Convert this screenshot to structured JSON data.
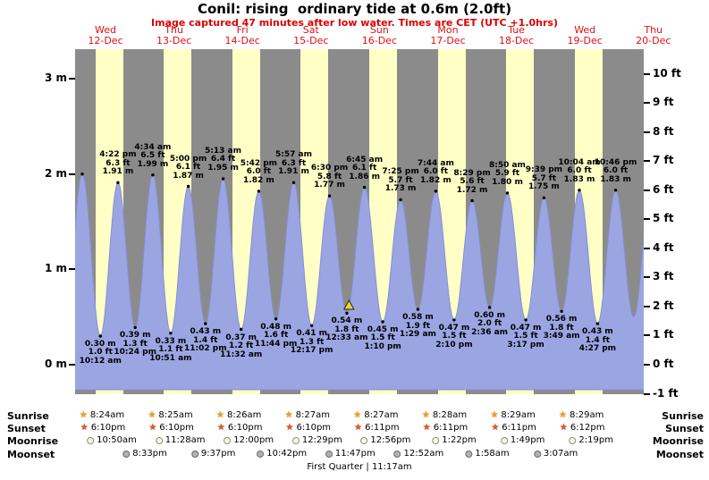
{
  "header": {
    "title": "Conil: rising  ordinary tide at 0.6m (2.0ft)",
    "subtitle": "Image captured 47 minutes after low water. Times are CET (UTC +1.0hrs)"
  },
  "colors": {
    "plot_bg": "#8b8b8b",
    "daylight_band": "#ffffc6",
    "tide_fill": "#9aa5e2",
    "tide_stroke": "#8690d4",
    "red_text": "#dd0000",
    "marker_fill": "#f2d42c"
  },
  "chart_data": {
    "type": "area",
    "title": "Conil: rising ordinary tide at 0.6m (2.0ft)",
    "timezone_note": "Times are CET (UTC +1.0hrs)",
    "ylim_m": [
      -0.3,
      3.31
    ],
    "days": [
      {
        "dow": "Wed",
        "date": "12-Dec"
      },
      {
        "dow": "Thu",
        "date": "13-Dec"
      },
      {
        "dow": "Fri",
        "date": "14-Dec"
      },
      {
        "dow": "Sat",
        "date": "15-Dec"
      },
      {
        "dow": "Sun",
        "date": "16-Dec"
      },
      {
        "dow": "Mon",
        "date": "17-Dec"
      },
      {
        "dow": "Tue",
        "date": "18-Dec"
      },
      {
        "dow": "Wed",
        "date": "19-Dec"
      },
      {
        "dow": "Thu",
        "date": "20-Dec"
      }
    ],
    "y_axis_left": {
      "unit": "m",
      "ticks": [
        {
          "label": "3 m",
          "value": 3
        },
        {
          "label": "2 m",
          "value": 2
        },
        {
          "label": "1 m",
          "value": 1
        },
        {
          "label": "0 m",
          "value": 0
        }
      ]
    },
    "y_axis_right": {
      "unit": "ft",
      "ticks": [
        {
          "label": "10 ft",
          "value": 10
        },
        {
          "label": "9 ft",
          "value": 9
        },
        {
          "label": "8 ft",
          "value": 8
        },
        {
          "label": "7 ft",
          "value": 7
        },
        {
          "label": "6 ft",
          "value": 6
        },
        {
          "label": "5 ft",
          "value": 5
        },
        {
          "label": "4 ft",
          "value": 4
        },
        {
          "label": "3 ft",
          "value": 3
        },
        {
          "label": "2 ft",
          "value": 2
        },
        {
          "label": "1 ft",
          "value": 1
        },
        {
          "label": "0 ft",
          "value": 0
        },
        {
          "label": "-1 ft",
          "value": -1
        }
      ]
    },
    "extremes": [
      {
        "kind": "low",
        "t": -2.4,
        "height_m": 0.33,
        "labeled": false,
        "dot": false
      },
      {
        "kind": "high",
        "t": 3.85,
        "height_m": 2.0,
        "labeled": false,
        "dot": true
      },
      {
        "kind": "low",
        "t": 10.2,
        "height_m": 0.3,
        "labeled": true,
        "dot": true,
        "lines": [
          "0.30 m",
          "1.0 ft",
          "10:12 am"
        ]
      },
      {
        "kind": "high",
        "t": 16.37,
        "height_m": 1.91,
        "labeled": true,
        "dot": true,
        "lines": [
          "4:22 pm",
          "6.3 ft",
          "1.91 m"
        ]
      },
      {
        "kind": "low",
        "t": 22.4,
        "height_m": 0.39,
        "labeled": true,
        "dot": true,
        "lines": [
          "0.39 m",
          "1.3 ft",
          "10:24 pm"
        ]
      },
      {
        "kind": "high",
        "t": 28.57,
        "height_m": 1.99,
        "labeled": true,
        "dot": true,
        "lines": [
          "4:34 am",
          "6.5 ft",
          "1.99 m"
        ]
      },
      {
        "kind": "low",
        "t": 34.85,
        "height_m": 0.33,
        "labeled": true,
        "dot": true,
        "lines": [
          "0.33 m",
          "1.1 ft",
          "10:51 am"
        ]
      },
      {
        "kind": "high",
        "t": 41.0,
        "height_m": 1.87,
        "labeled": true,
        "dot": true,
        "lines": [
          "5:00 pm",
          "6.1 ft",
          "1.87 m"
        ]
      },
      {
        "kind": "low",
        "t": 47.03,
        "height_m": 0.43,
        "labeled": true,
        "dot": true,
        "lines": [
          "0.43 m",
          "1.4 ft",
          "11:02 pm"
        ]
      },
      {
        "kind": "high",
        "t": 53.22,
        "height_m": 1.95,
        "labeled": true,
        "dot": true,
        "lines": [
          "5:13 am",
          "6.4 ft",
          "1.95 m"
        ]
      },
      {
        "kind": "low",
        "t": 59.53,
        "height_m": 0.37,
        "labeled": true,
        "dot": true,
        "lines": [
          "0.37 m",
          "1.2 ft",
          "11:32 am"
        ]
      },
      {
        "kind": "high",
        "t": 65.7,
        "height_m": 1.82,
        "labeled": true,
        "dot": true,
        "lines": [
          "5:42 pm",
          "6.0 ft",
          "1.82 m"
        ]
      },
      {
        "kind": "low",
        "t": 71.73,
        "height_m": 0.48,
        "labeled": true,
        "dot": true,
        "lines": [
          "0.48 m",
          "1.6 ft",
          "11:44 pm"
        ]
      },
      {
        "kind": "high",
        "t": 77.95,
        "height_m": 1.91,
        "labeled": true,
        "dot": true,
        "lines": [
          "5:57 am",
          "6.3 ft",
          "1.91 m"
        ]
      },
      {
        "kind": "low",
        "t": 84.28,
        "height_m": 0.41,
        "labeled": true,
        "dot": true,
        "lines": [
          "0.41 m",
          "1.3 ft",
          "12:17 pm"
        ]
      },
      {
        "kind": "high",
        "t": 90.5,
        "height_m": 1.77,
        "labeled": true,
        "dot": true,
        "lines": [
          "6:30 pm",
          "5.8 ft",
          "1.77 m"
        ]
      },
      {
        "kind": "low",
        "t": 96.55,
        "height_m": 0.54,
        "labeled": true,
        "dot": true,
        "lines": [
          "0.54 m",
          "1.8 ft",
          "12:33 am"
        ]
      },
      {
        "kind": "high",
        "t": 102.75,
        "height_m": 1.86,
        "labeled": true,
        "dot": true,
        "lines": [
          "6:45 am",
          "6.1 ft",
          "1.86 m"
        ]
      },
      {
        "kind": "low",
        "t": 109.17,
        "height_m": 0.45,
        "labeled": true,
        "dot": true,
        "lines": [
          "0.45 m",
          "1.5 ft",
          "1:10 pm"
        ]
      },
      {
        "kind": "high",
        "t": 115.42,
        "height_m": 1.73,
        "labeled": true,
        "dot": true,
        "lines": [
          "7:25 pm",
          "5.7 ft",
          "1.73 m"
        ]
      },
      {
        "kind": "low",
        "t": 121.48,
        "height_m": 0.58,
        "labeled": true,
        "dot": true,
        "lines": [
          "0.58 m",
          "1.9 ft",
          "1:29 am"
        ]
      },
      {
        "kind": "high",
        "t": 127.73,
        "height_m": 1.82,
        "labeled": true,
        "dot": true,
        "lines": [
          "7:44 am",
          "6.0 ft",
          "1.82 m"
        ]
      },
      {
        "kind": "low",
        "t": 134.17,
        "height_m": 0.47,
        "labeled": true,
        "dot": true,
        "lines": [
          "0.47 m",
          "1.5 ft",
          "2:10 pm"
        ]
      },
      {
        "kind": "high",
        "t": 140.48,
        "height_m": 1.72,
        "labeled": true,
        "dot": true,
        "lines": [
          "8:29 pm",
          "5.6 ft",
          "1.72 m"
        ]
      },
      {
        "kind": "low",
        "t": 146.6,
        "height_m": 0.6,
        "labeled": true,
        "dot": true,
        "lines": [
          "0.60 m",
          "2.0 ft",
          "2:36 am"
        ]
      },
      {
        "kind": "high",
        "t": 152.83,
        "height_m": 1.8,
        "labeled": true,
        "dot": true,
        "lines": [
          "8:50 am",
          "5.9 ft",
          "1.80 m"
        ]
      },
      {
        "kind": "low",
        "t": 159.28,
        "height_m": 0.47,
        "labeled": true,
        "dot": true,
        "lines": [
          "0.47 m",
          "1.5 ft",
          "3:17 pm"
        ]
      },
      {
        "kind": "high",
        "t": 165.65,
        "height_m": 1.75,
        "labeled": true,
        "dot": true,
        "lines": [
          "9:39 pm",
          "5.7 ft",
          "1.75 m"
        ]
      },
      {
        "kind": "low",
        "t": 171.82,
        "height_m": 0.56,
        "labeled": true,
        "dot": true,
        "lines": [
          "0.56 m",
          "1.8 ft",
          "3:49 am"
        ]
      },
      {
        "kind": "high",
        "t": 178.07,
        "height_m": 1.83,
        "labeled": true,
        "dot": true,
        "lines": [
          "10:04 am",
          "6.0 ft",
          "1.83 m"
        ]
      },
      {
        "kind": "low",
        "t": 184.45,
        "height_m": 0.43,
        "labeled": true,
        "dot": true,
        "lines": [
          "0.43 m",
          "1.4 ft",
          "4:27 pm"
        ]
      },
      {
        "kind": "high",
        "t": 190.77,
        "height_m": 1.83,
        "labeled": true,
        "dot": true,
        "lines": [
          "10:46 pm",
          "6.0 ft",
          "1.83 m"
        ]
      },
      {
        "kind": "low",
        "t": 197.1,
        "height_m": 0.5,
        "labeled": false,
        "dot": false
      },
      {
        "kind": "high",
        "t": 203.3,
        "height_m": 1.85,
        "labeled": false,
        "dot": false
      }
    ],
    "current_marker": {
      "t_hours": 97.33,
      "description": "current time, 47 minutes after 12:33 am low water"
    }
  },
  "astro": {
    "sunrise": {
      "label": "Sunrise",
      "times": [
        "8:24am",
        "8:25am",
        "8:26am",
        "8:27am",
        "8:27am",
        "8:28am",
        "8:29am",
        "8:29am"
      ]
    },
    "sunset": {
      "label": "Sunset",
      "times": [
        "6:10pm",
        "6:10pm",
        "6:10pm",
        "6:10pm",
        "6:11pm",
        "6:11pm",
        "6:11pm",
        "6:12pm"
      ]
    },
    "moonrise": {
      "label": "Moonrise",
      "times": [
        "10:50am",
        "11:28am",
        "12:00pm",
        "12:29pm",
        "12:56pm",
        "1:22pm",
        "1:49pm",
        "2:19pm"
      ]
    },
    "moonset": {
      "label": "Moonset",
      "times": [
        "8:33pm",
        "9:37pm",
        "10:42pm",
        "11:47pm",
        "12:52am",
        "1:58am",
        "3:07am"
      ]
    },
    "moon_phase": "First Quarter | 11:17am"
  }
}
